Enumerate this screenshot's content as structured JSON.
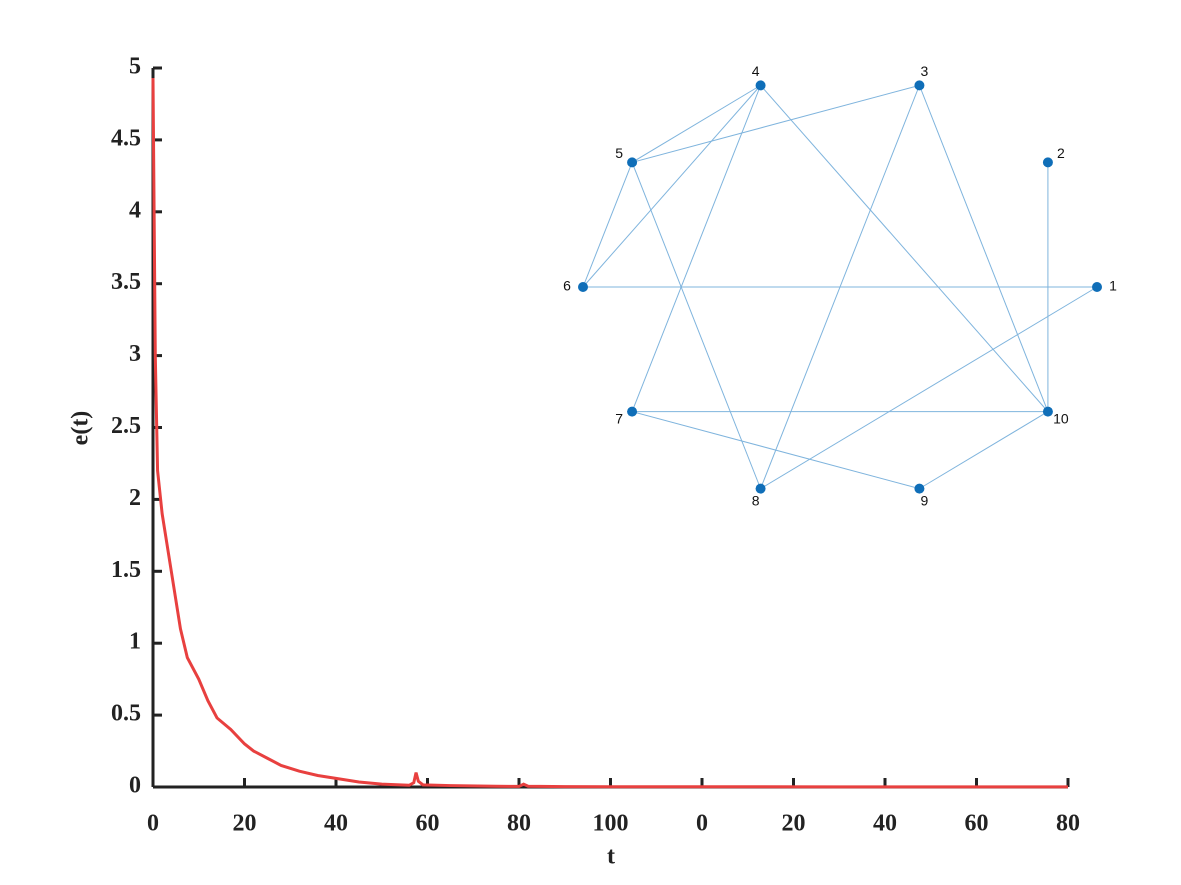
{
  "chart_data": {
    "type": "line",
    "xlabel": "t",
    "ylabel": "e(t)",
    "x": [
      0,
      0.5,
      1,
      2,
      4,
      6,
      7.5,
      10,
      12,
      14,
      17,
      20,
      22,
      25,
      28,
      32,
      36,
      40,
      45,
      50,
      56,
      57,
      57.5,
      58,
      59,
      65,
      75,
      80,
      81,
      82,
      90,
      100,
      150,
      200
    ],
    "series": [
      {
        "name": "e(t)",
        "color": "#e8403f",
        "values": [
          4.93,
          3.0,
          2.2,
          1.9,
          1.5,
          1.1,
          0.9,
          0.75,
          0.6,
          0.48,
          0.4,
          0.3,
          0.25,
          0.2,
          0.15,
          0.11,
          0.08,
          0.06,
          0.035,
          0.02,
          0.012,
          0.03,
          0.1,
          0.04,
          0.015,
          0.01,
          0.005,
          0.004,
          0.02,
          0.005,
          0.003,
          0.002,
          0.001,
          0.001
        ]
      }
    ],
    "xlim": [
      0,
      200
    ],
    "xticks": [
      0,
      20,
      40,
      60,
      80,
      100,
      {
        "value": 120,
        "label": "0"
      },
      {
        "value": 140,
        "label": "20"
      },
      {
        "value": 160,
        "label": "40"
      },
      {
        "value": 180,
        "label": "60"
      },
      {
        "value": 200,
        "label": "80"
      }
    ],
    "ylim": [
      0,
      5
    ],
    "yticks": [
      0,
      0.5,
      1,
      1.5,
      2,
      2.5,
      3,
      3.5,
      4,
      4.5,
      5
    ]
  },
  "graph": {
    "nodes": [
      "1",
      "2",
      "3",
      "4",
      "5",
      "6",
      "7",
      "8",
      "9",
      "10"
    ],
    "edges": [
      [
        "4",
        "5"
      ],
      [
        "4",
        "6"
      ],
      [
        "4",
        "7"
      ],
      [
        "4",
        "10"
      ],
      [
        "3",
        "5"
      ],
      [
        "3",
        "8"
      ],
      [
        "3",
        "10"
      ],
      [
        "5",
        "6"
      ],
      [
        "5",
        "8"
      ],
      [
        "6",
        "1"
      ],
      [
        "2",
        "10"
      ],
      [
        "7",
        "10"
      ],
      [
        "7",
        "9"
      ],
      [
        "9",
        "10"
      ],
      [
        "8",
        "1"
      ]
    ],
    "node_color": "#0f6eb8",
    "edge_color": "#7fb4dd"
  }
}
